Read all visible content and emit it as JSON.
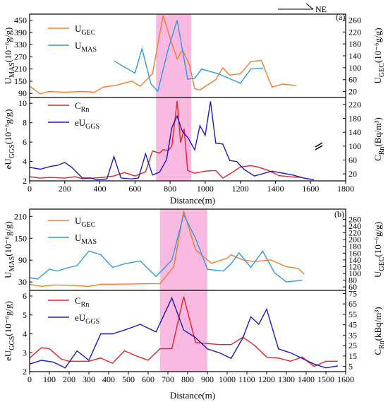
{
  "chart_data": [
    {
      "panel": "(a)",
      "type": "line",
      "x_range": [
        0,
        1800
      ],
      "x_ticks": [
        0,
        200,
        400,
        600,
        800,
        1000,
        1200,
        1400,
        1600,
        1800
      ],
      "highlight_x": [
        720,
        920
      ],
      "top": {
        "left_axis": {
          "label_main": "U",
          "label_sub": "MAS",
          "label_unit": "(10⁻⁶g/g)",
          "range": [
            70,
            480
          ],
          "ticks": [
            90,
            150,
            210,
            270,
            330,
            390,
            450
          ]
        },
        "right_axis": {
          "label_main": "U",
          "label_sub": "GEC",
          "label_unit": "(10⁻⁶g/g)",
          "range": [
            0,
            280
          ],
          "ticks": [
            20,
            60,
            100,
            140,
            180,
            220,
            260
          ]
        },
        "series": [
          {
            "name": "U",
            "sub": "GEC",
            "axis": "right",
            "color": "#f07d2b",
            "x": [
              0,
              60,
              110,
              200,
              300,
              370,
              420,
              500,
              580,
              630,
              700,
              760,
              800,
              840,
              870,
              910,
              940,
              970,
              1020,
              1060,
              1100,
              1140,
              1200,
              1260,
              1320,
              1380,
              1440,
              1520
            ],
            "y": [
              38,
              12,
              20,
              18,
              20,
              18,
              35,
              42,
              55,
              38,
              80,
              275,
              200,
              130,
              160,
              110,
              30,
              25,
              45,
              60,
              100,
              75,
              80,
              120,
              125,
              35,
              45,
              40
            ]
          },
          {
            "name": "U",
            "sub": "MAS",
            "axis": "left",
            "color": "#2e9be0",
            "x": [
              480,
              600,
              640,
              690,
              730,
              790,
              840,
              900,
              940,
              980,
              1020,
              1080,
              1200,
              1260,
              1330
            ],
            "y": [
              250,
              190,
              310,
              140,
              100,
              310,
              450,
              160,
              165,
              210,
              200,
              185,
              140,
              210,
              215
            ]
          }
        ]
      },
      "bottom": {
        "left_axis": {
          "label_main": "eU",
          "label_sub": "GGS",
          "label_unit": "(10⁻⁶g/g)",
          "range": [
            2,
            10.6
          ],
          "ticks": [
            2,
            4,
            6,
            8,
            10
          ]
        },
        "right_axis": {
          "label_main": "C",
          "label_sub": "Rn",
          "label_unit": "(Bq/m³)",
          "range": [
            0,
            240
          ],
          "ticks": [
            20,
            60,
            100,
            140,
            180,
            220
          ]
        },
        "series": [
          {
            "name": "C",
            "sub": "Rn",
            "axis": "right",
            "color": "#e8202a",
            "x": [
              0,
              60,
              120,
              200,
              260,
              300,
              360,
              420,
              480,
              540,
              600,
              660,
              700,
              740,
              760,
              790,
              810,
              840,
              860,
              880,
              900,
              940,
              1000,
              1060,
              1100,
              1160,
              1200,
              1260,
              1300,
              1360,
              1420,
              1480,
              1540
            ],
            "y": [
              12,
              8,
              10,
              8,
              12,
              6,
              8,
              10,
              14,
              24,
              14,
              26,
              86,
              80,
              90,
              88,
              100,
              230,
              110,
              150,
              30,
              22,
              28,
              30,
              8,
              26,
              40,
              44,
              40,
              30,
              15,
              12,
              10
            ]
          },
          {
            "name": "eU",
            "sub": "GGS",
            "axis": "left",
            "color": "#1a1ab8",
            "x": [
              0,
              60,
              120,
              160,
              200,
              240,
              300,
              350,
              380,
              440,
              480,
              520,
              580,
              620,
              660,
              700,
              740,
              780,
              810,
              840,
              870,
              900,
              940,
              970,
              1000,
              1030,
              1060,
              1100,
              1140,
              1180,
              1220,
              1280,
              1340,
              1380,
              1440,
              1500,
              1560,
              1620
            ],
            "y": [
              3.4,
              3.2,
              3.5,
              3.6,
              3.9,
              3.4,
              2.3,
              2.3,
              2.1,
              2.2,
              4.5,
              2.3,
              2.2,
              2.3,
              4.8,
              2.6,
              2.9,
              4.2,
              7.5,
              8.7,
              7.1,
              6.5,
              5.2,
              7.7,
              6.7,
              10.2,
              5.9,
              5.8,
              4.1,
              4.0,
              3.2,
              2.5,
              2.8,
              3.0,
              2.8,
              2.6,
              2.3,
              2.1
            ]
          }
        ]
      },
      "xlabel": "Distance(m)"
    },
    {
      "panel": "(b)",
      "type": "line",
      "x_range": [
        0,
        1600
      ],
      "x_ticks": [
        0,
        100,
        200,
        300,
        400,
        500,
        600,
        700,
        800,
        900,
        1000,
        1100,
        1200,
        1300,
        1400,
        1500,
        1600
      ],
      "highlight_x": [
        660,
        900
      ],
      "top": {
        "left_axis": {
          "label_main": "U",
          "label_sub": "MAS",
          "label_unit": "(10⁻⁶g/g)",
          "range": [
            7,
            230
          ],
          "ticks": [
            30,
            90,
            150,
            210
          ]
        },
        "right_axis": {
          "label_main": "U",
          "label_sub": "GEC",
          "label_unit": "(10⁻⁶g/g)",
          "range": [
            50,
            290
          ],
          "ticks": [
            60,
            80,
            100,
            120,
            140,
            160,
            180,
            200,
            220,
            240,
            260
          ]
        },
        "series": [
          {
            "name": "U",
            "sub": "GEC",
            "axis": "right",
            "color": "#f07d2b",
            "x": [
              0,
              60,
              120,
              200,
              300,
              360,
              660,
              730,
              780,
              840,
              920,
              1000,
              1020,
              1080,
              1140,
              1220,
              1300,
              1360,
              1390
            ],
            "y": [
              68,
              62,
              66,
              65,
              62,
              68,
              70,
              120,
              285,
              170,
              130,
              145,
              155,
              140,
              135,
              140,
              120,
              115,
              98
            ]
          },
          {
            "name": "U",
            "sub": "MAS",
            "axis": "left",
            "color": "#2e9be0",
            "x": [
              0,
              40,
              100,
              140,
              200,
              240,
              300,
              360,
              420,
              480,
              560,
              640,
              720,
              780,
              840,
              900,
              980,
              1020,
              1060,
              1120,
              1180,
              1240,
              1300,
              1380
            ],
            "y": [
              42,
              38,
              65,
              60,
              70,
              75,
              115,
              105,
              70,
              80,
              88,
              45,
              90,
              215,
              150,
              65,
              60,
              80,
              110,
              70,
              115,
              55,
              30,
              35
            ]
          }
        ]
      },
      "bottom": {
        "left_axis": {
          "label_main": "eU",
          "label_sub": "GGS",
          "label_unit": "(10⁻⁶g/g)",
          "range": [
            2,
            6.3
          ],
          "ticks": [
            2,
            3,
            4,
            5,
            6
          ]
        },
        "right_axis": {
          "label_main": "C",
          "label_sub": "Rn",
          "label_unit": "(kBq/m³)",
          "range": [
            0,
            78
          ],
          "ticks": [
            5,
            15,
            25,
            35,
            45,
            55,
            65,
            75
          ]
        },
        "series": [
          {
            "name": "C",
            "sub": "Rn",
            "axis": "right",
            "color": "#e8202a",
            "x": [
              0,
              60,
              100,
              160,
              200,
              300,
              360,
              420,
              480,
              540,
              600,
              660,
              720,
              780,
              840,
              900,
              960,
              1020,
              1080,
              1140,
              1200,
              1260,
              1320,
              1380,
              1440,
              1500,
              1560
            ],
            "y": [
              13,
              23,
              22,
              12,
              10,
              10,
              13,
              8,
              20,
              15,
              11,
              22,
              22,
              72,
              28,
              27,
              26,
              26,
              33,
              25,
              14,
              13,
              10,
              14,
              5,
              10,
              10
            ]
          },
          {
            "name": "eU",
            "sub": "GGS",
            "axis": "left",
            "color": "#1a1ab8",
            "x": [
              0,
              60,
              120,
              180,
              240,
              300,
              360,
              420,
              480,
              560,
              640,
              720,
              780,
              840,
              900,
              960,
              1020,
              1080,
              1120,
              1160,
              1200,
              1260,
              1320,
              1380,
              1440,
              1500,
              1560
            ],
            "y": [
              2.4,
              2.6,
              2.5,
              2.2,
              3.1,
              2.6,
              4.0,
              4.0,
              4.2,
              4.5,
              4.1,
              5.9,
              4.2,
              3.8,
              3.2,
              3.0,
              2.7,
              3.8,
              4.9,
              4.5,
              5.3,
              3.2,
              3.0,
              2.7,
              2.4,
              2.2,
              2.3
            ]
          }
        ]
      },
      "xlabel": "Distance(m)"
    }
  ],
  "north_arrow": {
    "label": "NE"
  }
}
